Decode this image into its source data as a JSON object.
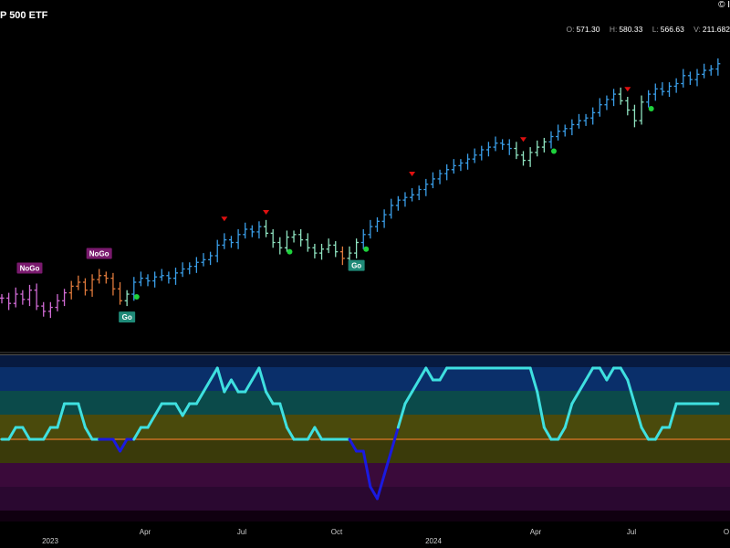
{
  "header": {
    "title": "P 500 ETF",
    "copyright": "© I"
  },
  "ohlc": [
    {
      "key": "O:",
      "value": "571.30"
    },
    {
      "key": "H:",
      "value": "580.33"
    },
    {
      "key": "L:",
      "value": "566.63"
    },
    {
      "key": "V:",
      "value": "211.682"
    }
  ],
  "x_axis": {
    "month_ticks": [
      "Apr",
      "Jul",
      "Oct",
      "Apr",
      "Jul",
      "O"
    ],
    "year_ticks": [
      "2023",
      "2024"
    ]
  },
  "colors": {
    "nogo_strong": "#d06bd4",
    "nogo_weak": "#e07a3c",
    "go_strong": "#3a9ee8",
    "go_weak": "#8fe3c0",
    "signal_up": "#1ed23c",
    "signal_down": "#e01010",
    "osc_line": "#3fe0e0",
    "osc_neg": "#1a1ae0",
    "zero_line": "#e07a2a"
  },
  "chart_data": [
    {
      "type": "line",
      "series_style": "ohlc-bars",
      "x_unit": "weeks (weekly bars)",
      "ylim": [
        370,
        590
      ],
      "labels": [
        {
          "text": "NoGo",
          "week": 4
        },
        {
          "text": "NoGo",
          "week": 14
        },
        {
          "text": "Go",
          "week": 18
        },
        {
          "text": "Go",
          "week": 51
        }
      ],
      "weeks": [
        0,
        1,
        2,
        3,
        4,
        5,
        6,
        7,
        8,
        9,
        10,
        11,
        12,
        13,
        14,
        15,
        16,
        17,
        18,
        19,
        20,
        21,
        22,
        23,
        24,
        25,
        26,
        27,
        28,
        29,
        30,
        31,
        32,
        33,
        34,
        35,
        36,
        37,
        38,
        39,
        40,
        41,
        42,
        43,
        44,
        45,
        46,
        47,
        48,
        49,
        50,
        51,
        52,
        53,
        54,
        55,
        56,
        57,
        58,
        59,
        60,
        61,
        62,
        63,
        64,
        65,
        66,
        67,
        68,
        69,
        70,
        71,
        72,
        73,
        74,
        75,
        76,
        77,
        78,
        79,
        80,
        81,
        82,
        83,
        84,
        85,
        86,
        87,
        88,
        89,
        90,
        91,
        92,
        93,
        94,
        95,
        96,
        97,
        98,
        99,
        100,
        101,
        102,
        103
      ],
      "close": [
        398,
        394,
        401,
        397,
        404,
        392,
        388,
        391,
        396,
        402,
        407,
        410,
        404,
        412,
        415,
        413,
        405,
        396,
        401,
        410,
        413,
        411,
        414,
        415,
        413,
        417,
        420,
        422,
        425,
        427,
        430,
        438,
        442,
        440,
        446,
        450,
        448,
        452,
        447,
        440,
        436,
        444,
        446,
        442,
        436,
        432,
        435,
        438,
        433,
        428,
        432,
        440,
        446,
        452,
        456,
        461,
        468,
        472,
        474,
        476,
        480,
        484,
        488,
        492,
        495,
        498,
        500,
        503,
        506,
        510,
        512,
        515,
        514,
        511,
        506,
        502,
        508,
        512,
        516,
        520,
        524,
        526,
        529,
        532,
        534,
        538,
        544,
        548,
        552,
        547,
        540,
        532,
        546,
        552,
        556,
        554,
        558,
        560,
        566,
        563,
        567,
        570,
        571,
        575
      ],
      "trend": [
        "N",
        "N",
        "N",
        "N",
        "N",
        "N",
        "N",
        "N",
        "N",
        "N",
        "n",
        "n",
        "n",
        "n",
        "n",
        "n",
        "n",
        "n",
        "g",
        "G",
        "G",
        "G",
        "G",
        "G",
        "G",
        "G",
        "G",
        "G",
        "G",
        "G",
        "G",
        "G",
        "G",
        "G",
        "G",
        "G",
        "G",
        "G",
        "g",
        "g",
        "g",
        "g",
        "g",
        "g",
        "g",
        "g",
        "g",
        "g",
        "g",
        "n",
        "g",
        "g",
        "G",
        "G",
        "G",
        "G",
        "G",
        "G",
        "G",
        "G",
        "G",
        "G",
        "G",
        "G",
        "G",
        "G",
        "G",
        "G",
        "G",
        "G",
        "G",
        "G",
        "G",
        "G",
        "g",
        "g",
        "g",
        "g",
        "g",
        "G",
        "G",
        "G",
        "G",
        "G",
        "G",
        "G",
        "G",
        "G",
        "G",
        "g",
        "g",
        "g",
        "g",
        "G",
        "G",
        "G",
        "G",
        "G",
        "G",
        "G",
        "G",
        "G",
        "G",
        "G"
      ],
      "signals_down_weeks": [
        32,
        38,
        59,
        75,
        90
      ],
      "signals_up_weeks": [
        19,
        41,
        52,
        79,
        93
      ]
    },
    {
      "type": "line",
      "name_hidden": true,
      "bands": [
        "deep-blue",
        "teal",
        "olive",
        "zero",
        "purple"
      ],
      "ylim": [
        -6,
        6
      ],
      "values": [
        0,
        0,
        1,
        1,
        0,
        0,
        0,
        1,
        1,
        3,
        3,
        3,
        1,
        0,
        0,
        0,
        0,
        -1,
        0,
        0,
        1,
        1,
        2,
        3,
        3,
        3,
        2,
        3,
        3,
        4,
        5,
        6,
        4,
        5,
        4,
        4,
        5,
        6,
        4,
        3,
        3,
        1,
        0,
        0,
        0,
        1,
        0,
        0,
        0,
        0,
        0,
        -1,
        -1,
        -4,
        -5,
        -3,
        -1,
        1,
        3,
        4,
        5,
        6,
        5,
        5,
        6,
        6,
        6,
        6,
        6,
        6,
        6,
        6,
        6,
        6,
        6,
        6,
        6,
        4,
        1,
        0,
        0,
        1,
        3,
        4,
        5,
        6,
        6,
        5,
        6,
        6,
        5,
        3,
        1,
        0,
        0,
        1,
        1,
        3,
        3,
        3,
        3,
        3,
        3,
        3
      ]
    }
  ]
}
